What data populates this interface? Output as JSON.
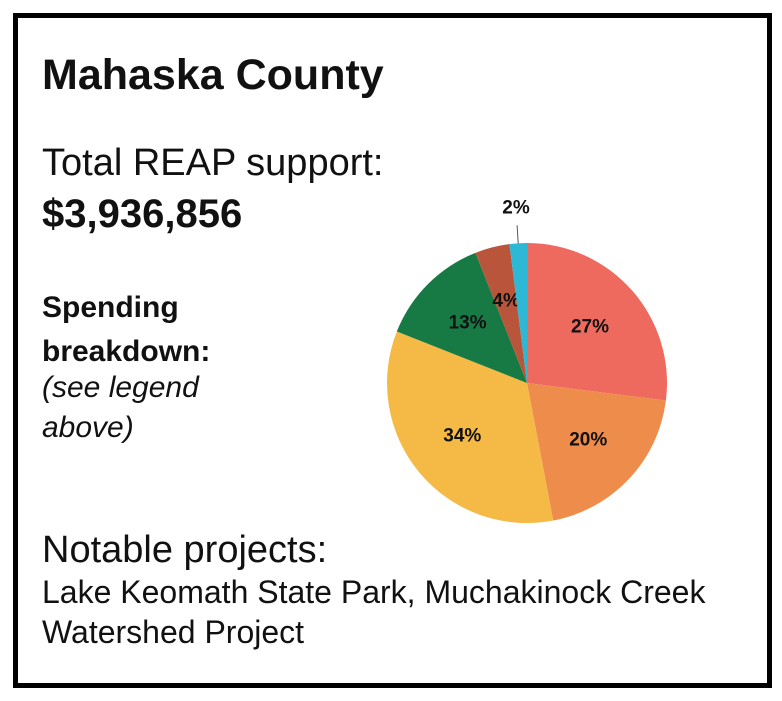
{
  "title": "Mahaska County",
  "total_label": "Total REAP support:",
  "total_value": "$3,936,856",
  "breakdown_label": "Spending breakdown:",
  "breakdown_note": "(see legend above)",
  "projects_label": "Notable projects:",
  "projects": "Lake Keomath State Park, Muchakinock Creek Watershed Project",
  "chart_data": {
    "type": "pie",
    "values": [
      27,
      20,
      34,
      13,
      4,
      2
    ],
    "value_labels": [
      "27%",
      "20%",
      "34%",
      "13%",
      "4%",
      "2%"
    ],
    "colors": [
      "#ee6a5e",
      "#ee8c4c",
      "#f5ba46",
      "#177a45",
      "#b9553a",
      "#2db8d6"
    ]
  }
}
